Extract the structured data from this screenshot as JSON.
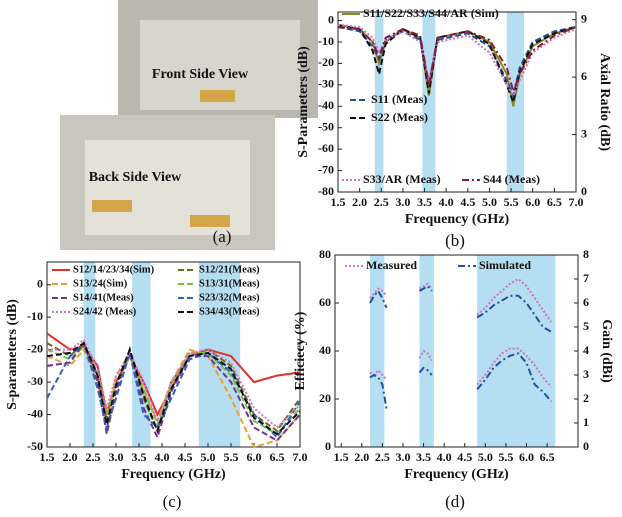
{
  "photo": {
    "labels": [
      "Front Side View",
      "Back Side View"
    ],
    "caption": "(a)"
  },
  "chart_data": [
    {
      "type": "line",
      "caption": "(b)",
      "xlabel": "Frequency (GHz)",
      "ylabel": "S-Parameters (dB)",
      "y2label": "Axial Ratio (dB)",
      "xlim": [
        1.5,
        7.0
      ],
      "xticks": [
        1.5,
        {
          "value": 2,
          "label": "2.0"
        },
        2.5,
        {
          "value": 3,
          "label": "3.0"
        },
        3.5,
        {
          "value": 4,
          "label": "4.0"
        },
        4.5,
        {
          "value": 5,
          "label": "5.0"
        },
        5.5,
        {
          "value": 6,
          "label": "6.0"
        },
        6.5,
        {
          "value": 7,
          "label": "7.0"
        }
      ],
      "ylim": [
        -80,
        4
      ],
      "yticks": [
        0,
        -10,
        -20,
        -30,
        -40,
        -50,
        -60,
        -70,
        -80
      ],
      "y2lim": [
        0,
        9.4
      ],
      "y2ticks": [
        0,
        3,
        6,
        9
      ],
      "band_color": "#a8d8f0",
      "bands": [
        [
          2.35,
          2.55
        ],
        [
          3.45,
          3.75
        ],
        [
          5.4,
          5.8
        ]
      ],
      "x": [
        1.5,
        2.0,
        2.3,
        2.45,
        2.6,
        3.0,
        3.4,
        3.6,
        3.8,
        4.5,
        5.0,
        5.4,
        5.55,
        5.7,
        6.0,
        6.5,
        7.0
      ],
      "series": [
        {
          "name": "S11/S22/S33/S44/AR (Sim)",
          "color": "#8c8a1e",
          "style": "solid",
          "values": [
            -2,
            -4,
            -10,
            -20,
            -10,
            -4,
            -8,
            -35,
            -8,
            -5,
            -10,
            -25,
            -40,
            -25,
            -12,
            -6,
            -3
          ]
        },
        {
          "name": "S11 (Meas)",
          "color": "#1f4fa0",
          "style": "dashed",
          "values": [
            -3,
            -5,
            -12,
            -18,
            -9,
            -5,
            -9,
            -30,
            -9,
            -6,
            -12,
            -28,
            -35,
            -22,
            -10,
            -5,
            -3
          ]
        },
        {
          "name": "S22 (Meas)",
          "color": "#111111",
          "style": "dashed",
          "values": [
            -2,
            -4,
            -14,
            -25,
            -11,
            -4,
            -8,
            -34,
            -8,
            -5,
            -11,
            -30,
            -38,
            -24,
            -11,
            -6,
            -3
          ]
        },
        {
          "name": "S33/AR (Meas)",
          "color": "#d070c8",
          "style": "dotted",
          "values": [
            -2,
            -3,
            -8,
            -15,
            -9,
            -5,
            -10,
            -28,
            -10,
            -7,
            -15,
            -30,
            -35,
            -28,
            -15,
            -8,
            -4
          ]
        },
        {
          "name": "S44 (Meas)",
          "color": "#8b1a3a",
          "style": "dashdot",
          "values": [
            -3,
            -4,
            -10,
            -17,
            -8,
            -4,
            -7,
            -30,
            -8,
            -5,
            -9,
            -22,
            -33,
            -25,
            -14,
            -7,
            -3
          ]
        }
      ]
    },
    {
      "type": "line",
      "caption": "(c)",
      "xlabel": "Frequency (GHz)",
      "ylabel": "S-parameters (dB)",
      "xlim": [
        1.5,
        7.0
      ],
      "xticks": [
        1.5,
        {
          "value": 2,
          "label": "2.0"
        },
        2.5,
        {
          "value": 3,
          "label": "3.0"
        },
        3.5,
        {
          "value": 4,
          "label": "4.0"
        },
        4.5,
        {
          "value": 5,
          "label": "5.0"
        },
        5.5,
        {
          "value": 6,
          "label": "6.0"
        },
        6.5,
        {
          "value": 7,
          "label": "7.0"
        }
      ],
      "ylim": [
        -50,
        7
      ],
      "yticks": [
        0,
        -10,
        -20,
        -30,
        -40,
        -50
      ],
      "band_color": "#a8d8f0",
      "bands": [
        [
          2.3,
          2.55
        ],
        [
          3.35,
          3.75
        ],
        [
          4.8,
          5.7
        ]
      ],
      "x": [
        1.5,
        2.0,
        2.3,
        2.6,
        2.8,
        3.0,
        3.3,
        3.6,
        3.9,
        4.2,
        4.6,
        5.0,
        5.5,
        6.0,
        6.5,
        7.0
      ],
      "series": [
        {
          "name": "S12/14/23/34(Sim)",
          "color": "#e0302a",
          "style": "solid",
          "values": [
            -15,
            -20,
            -19,
            -25,
            -40,
            -30,
            -22,
            -30,
            -40,
            -32,
            -22,
            -20,
            -22,
            -30,
            -28,
            -27
          ]
        },
        {
          "name": "S12/21(Meas)",
          "color": "#6b6b1a",
          "style": "dashed",
          "values": [
            -18,
            -22,
            -18,
            -28,
            -42,
            -32,
            -20,
            -35,
            -45,
            -30,
            -22,
            -20,
            -25,
            -40,
            -45,
            -35
          ]
        },
        {
          "name": "S13/24(Sim)",
          "color": "#e8a030",
          "style": "dashed",
          "values": [
            -22,
            -25,
            -20,
            -30,
            -45,
            -28,
            -22,
            -33,
            -42,
            -30,
            -20,
            -22,
            -35,
            -50,
            -48,
            -40
          ]
        },
        {
          "name": "S13/31(Meas)",
          "color": "#7cc040",
          "style": "dashed",
          "values": [
            -20,
            -23,
            -19,
            -27,
            -40,
            -30,
            -22,
            -32,
            -43,
            -31,
            -21,
            -21,
            -28,
            -42,
            -46,
            -38
          ]
        },
        {
          "name": "S14/41(Meas)",
          "color": "#7030a0",
          "style": "dashed",
          "values": [
            -25,
            -24,
            -18,
            -30,
            -46,
            -33,
            -20,
            -38,
            -47,
            -33,
            -22,
            -22,
            -30,
            -44,
            -48,
            -40
          ]
        },
        {
          "name": "S23/32(Meas)",
          "color": "#3060c0",
          "style": "dashed",
          "values": [
            -35,
            -22,
            -18,
            -32,
            -44,
            -35,
            -21,
            -40,
            -44,
            -35,
            -23,
            -21,
            -27,
            -40,
            -47,
            -36
          ]
        },
        {
          "name": "S24/42 (Meas)",
          "color": "#e070d0",
          "style": "dotted",
          "values": [
            -20,
            -20,
            -17,
            -26,
            -38,
            -28,
            -21,
            -30,
            -42,
            -30,
            -21,
            -20,
            -24,
            -38,
            -44,
            -37
          ]
        },
        {
          "name": "S34/43(Meas)",
          "color": "#111111",
          "style": "dashed",
          "values": [
            -22,
            -21,
            -18,
            -28,
            -43,
            -31,
            -20,
            -34,
            -45,
            -32,
            -22,
            -21,
            -26,
            -41,
            -46,
            -39
          ]
        }
      ]
    },
    {
      "type": "line",
      "caption": "(d)",
      "xlabel": "Frequency (GHz)",
      "ylabel": "Efficiecy (%)",
      "y2label": "Gain (dBi)",
      "xlim": [
        1.35,
        7.25
      ],
      "xticks": [
        1.5,
        {
          "value": 2,
          "label": "2.0"
        },
        2.5,
        {
          "value": 3,
          "label": "3.0"
        },
        3.5,
        {
          "value": 4,
          "label": "4.0"
        },
        4.5,
        {
          "value": 5,
          "label": "5.0"
        },
        5.5,
        {
          "value": 6,
          "label": "6.0"
        },
        6.5
      ],
      "ylim": [
        0,
        80
      ],
      "yticks": [
        0,
        20,
        40,
        60,
        80
      ],
      "y2lim": [
        0,
        8
      ],
      "y2ticks": [
        0,
        1,
        2,
        3,
        4,
        5,
        6,
        7,
        8
      ],
      "band_color": "#a8d8f0",
      "bands": [
        [
          2.2,
          2.55
        ],
        [
          3.4,
          3.75
        ],
        [
          4.8,
          6.7
        ]
      ],
      "x": [
        2.2,
        2.3,
        2.4,
        2.5,
        2.6,
        3.0,
        3.4,
        3.5,
        3.6,
        3.7,
        4.2,
        4.8,
        5.0,
        5.2,
        5.4,
        5.6,
        5.8,
        6.0,
        6.2,
        6.4,
        6.6
      ],
      "series": [
        {
          "name": "Measured",
          "color": "#d070c8",
          "style": "dotted",
          "values": [
            62,
            64,
            66,
            65,
            63,
            null,
            66,
            67,
            68,
            66,
            null,
            55,
            58,
            62,
            65,
            68,
            70,
            67,
            62,
            57,
            52
          ]
        },
        {
          "name": "Simulated",
          "color": "#2050a0",
          "style": "dashdot",
          "values": [
            60,
            63,
            65,
            62,
            58,
            null,
            65,
            66,
            67,
            65,
            null,
            54,
            56,
            59,
            61,
            63,
            63,
            60,
            55,
            50,
            48
          ]
        },
        {
          "color": "#d070c8",
          "style": "dotted",
          "axis": "y2",
          "values": [
            3.1,
            3.0,
            3.2,
            3.0,
            2.8,
            null,
            3.7,
            4.0,
            3.9,
            3.6,
            null,
            2.6,
            3.0,
            3.5,
            3.9,
            4.1,
            4.1,
            3.8,
            3.4,
            2.9,
            2.5
          ]
        },
        {
          "color": "#2050a0",
          "style": "dashdot",
          "axis": "y2",
          "values": [
            2.9,
            3.0,
            2.9,
            2.6,
            1.6,
            null,
            3.1,
            3.3,
            3.2,
            3.0,
            null,
            2.4,
            2.8,
            3.3,
            3.6,
            3.8,
            3.9,
            3.5,
            2.6,
            2.3,
            1.9
          ]
        }
      ]
    }
  ]
}
